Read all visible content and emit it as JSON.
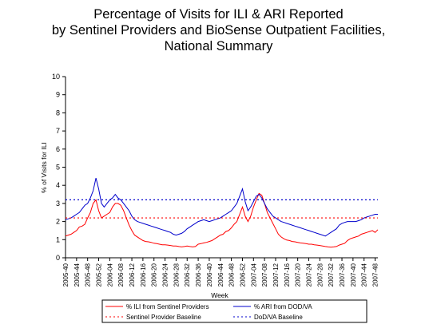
{
  "chart_data": {
    "type": "line",
    "title_lines": [
      "Percentage of Visits for ILI & ARI Reported",
      "by Sentinel Providers and BioSense Outpatient Facilities,",
      "National Summary"
    ],
    "xlabel": "Week",
    "ylabel": "% of Visits for ILI",
    "ylim": [
      0,
      10
    ],
    "yticks": [
      "0",
      "1",
      "2",
      "3",
      "4",
      "5",
      "6",
      "7",
      "8",
      "9",
      "10"
    ],
    "xticks": [
      "2005-40",
      "2005-44",
      "2005-48",
      "2005-52",
      "2006-04",
      "2006-08",
      "2006-12",
      "2006-16",
      "2006-20",
      "2006-24",
      "2006-28",
      "2006-32",
      "2006-36",
      "2006-40",
      "2006-44",
      "2006-48",
      "2006-52",
      "2007-04",
      "2007-08",
      "2007-12",
      "2007-16",
      "2007-20",
      "2007-24",
      "2007-28",
      "2007-32",
      "2007-36",
      "2007-40",
      "2007-44",
      "2007-48"
    ],
    "legend_placement": "bottom",
    "series": [
      {
        "name": "% ILI from Sentinel Providers",
        "color": "#ff0000",
        "style": "solid",
        "values": [
          1.2,
          1.25,
          1.3,
          1.4,
          1.5,
          1.7,
          1.75,
          1.85,
          2.2,
          2.5,
          3.0,
          3.2,
          2.6,
          2.2,
          2.3,
          2.4,
          2.5,
          2.8,
          3.0,
          3.0,
          2.9,
          2.6,
          2.2,
          1.8,
          1.5,
          1.25,
          1.15,
          1.05,
          0.95,
          0.9,
          0.88,
          0.85,
          0.8,
          0.78,
          0.75,
          0.72,
          0.72,
          0.7,
          0.68,
          0.65,
          0.65,
          0.62,
          0.6,
          0.62,
          0.65,
          0.62,
          0.6,
          0.62,
          0.75,
          0.78,
          0.82,
          0.85,
          0.9,
          0.95,
          1.05,
          1.15,
          1.25,
          1.3,
          1.45,
          1.5,
          1.65,
          1.85,
          2.0,
          2.4,
          2.8,
          2.3,
          2.0,
          2.3,
          2.8,
          3.2,
          3.55,
          3.45,
          3.0,
          2.5,
          2.2,
          1.9,
          1.6,
          1.3,
          1.15,
          1.05,
          0.98,
          0.95,
          0.9,
          0.88,
          0.85,
          0.82,
          0.8,
          0.78,
          0.75,
          0.75,
          0.72,
          0.7,
          0.68,
          0.65,
          0.62,
          0.6,
          0.58,
          0.6,
          0.62,
          0.7,
          0.75,
          0.8,
          0.95,
          1.05,
          1.1,
          1.15,
          1.2,
          1.3,
          1.35,
          1.4,
          1.45,
          1.5,
          1.4,
          1.55
        ]
      },
      {
        "name": "% ARI from DOD/VA",
        "color": "#0000cc",
        "style": "solid",
        "values": [
          2.1,
          2.15,
          2.2,
          2.3,
          2.4,
          2.5,
          2.7,
          2.9,
          3.0,
          3.3,
          3.7,
          4.4,
          3.8,
          3.0,
          2.8,
          3.0,
          3.2,
          3.3,
          3.5,
          3.3,
          3.2,
          3.0,
          2.8,
          2.6,
          2.3,
          2.1,
          2.0,
          1.95,
          1.9,
          1.85,
          1.8,
          1.75,
          1.7,
          1.65,
          1.6,
          1.55,
          1.5,
          1.45,
          1.4,
          1.3,
          1.25,
          1.3,
          1.35,
          1.45,
          1.6,
          1.7,
          1.8,
          1.9,
          2.0,
          2.05,
          2.1,
          2.05,
          2.0,
          2.05,
          2.1,
          2.15,
          2.2,
          2.3,
          2.4,
          2.5,
          2.6,
          2.8,
          3.0,
          3.4,
          3.8,
          3.1,
          2.6,
          2.8,
          3.1,
          3.4,
          3.5,
          3.3,
          3.0,
          2.7,
          2.5,
          2.3,
          2.2,
          2.1,
          2.0,
          1.95,
          1.9,
          1.85,
          1.8,
          1.75,
          1.7,
          1.65,
          1.6,
          1.55,
          1.5,
          1.45,
          1.4,
          1.35,
          1.3,
          1.25,
          1.2,
          1.3,
          1.4,
          1.5,
          1.6,
          1.8,
          1.9,
          1.95,
          2.0,
          2.0,
          2.0,
          2.0,
          2.05,
          2.1,
          2.2,
          2.25,
          2.3,
          2.35,
          2.4,
          2.4
        ]
      },
      {
        "name": "Sentinel Provider Baseline",
        "color": "#ff0000",
        "style": "dotted",
        "baseline": 2.2
      },
      {
        "name": "DoD/VA Baseline",
        "color": "#0000cc",
        "style": "dotted",
        "baseline": 3.2
      }
    ]
  }
}
